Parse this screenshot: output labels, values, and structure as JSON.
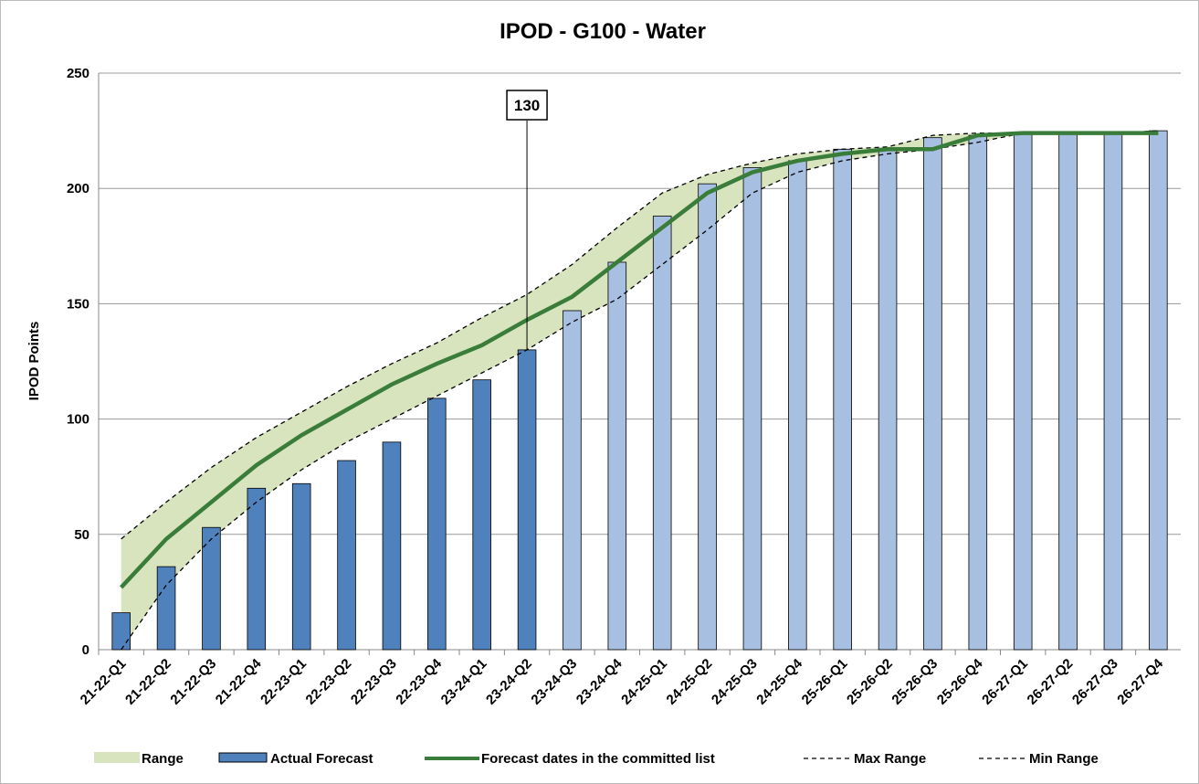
{
  "chart_data": {
    "type": "bar_line",
    "title": "IPOD - G100 - Water",
    "y_label": "IPOD Points",
    "categories": [
      "21-22-Q1",
      "21-22-Q2",
      "21-22-Q3",
      "21-22-Q4",
      "22-23-Q1",
      "22-23-Q2",
      "22-23-Q3",
      "22-23-Q4",
      "23-24-Q1",
      "23-24-Q2",
      "23-24-Q3",
      "23-24-Q4",
      "24-25-Q1",
      "24-25-Q2",
      "24-25-Q3",
      "24-25-Q4",
      "25-26-Q1",
      "25-26-Q2",
      "25-26-Q3",
      "25-26-Q4",
      "26-27-Q1",
      "26-27-Q2",
      "26-27-Q3",
      "26-27-Q4"
    ],
    "range": {
      "name": "Range",
      "color": "#d7e4bd"
    },
    "series": [
      {
        "name": "Actual Forecast",
        "kind": "bar",
        "color": "#4f81bd",
        "colors": [
          "#4f81bd",
          "#4f81bd",
          "#4f81bd",
          "#4f81bd",
          "#4f81bd",
          "#4f81bd",
          "#4f81bd",
          "#4f81bd",
          "#4f81bd",
          "#4f81bd",
          "#a7bfe0",
          "#a7bfe0",
          "#a7bfe0",
          "#a7bfe0",
          "#a7bfe0",
          "#a7bfe0",
          "#a7bfe0",
          "#a7bfe0",
          "#a7bfe0",
          "#a7bfe0",
          "#a7bfe0",
          "#a7bfe0",
          "#a7bfe0",
          "#a7bfe0"
        ],
        "values": [
          16,
          36,
          53,
          70,
          72,
          82,
          90,
          109,
          117,
          130,
          147,
          168,
          188,
          202,
          209,
          212,
          217,
          217,
          222,
          223,
          224,
          224,
          224,
          225
        ]
      },
      {
        "name": "Forecast dates in the committed list",
        "kind": "line",
        "color": "#3a7d3a",
        "values": [
          27,
          48,
          64,
          80,
          93,
          104,
          115,
          124,
          132,
          143,
          153,
          168,
          183,
          198,
          207,
          212,
          215,
          217,
          217,
          223,
          224,
          224,
          224,
          224
        ]
      },
      {
        "name": "Max Range",
        "kind": "dashed",
        "color": "#000000",
        "values": [
          48,
          64,
          79,
          92,
          103,
          114,
          124,
          133,
          144,
          154,
          167,
          183,
          198,
          206,
          211,
          215,
          217,
          218,
          223,
          224,
          224,
          224,
          224,
          225
        ]
      },
      {
        "name": "Min Range",
        "kind": "dashed",
        "color": "#000000",
        "values": [
          0,
          28,
          48,
          64,
          78,
          90,
          100,
          110,
          120,
          130,
          142,
          152,
          167,
          182,
          198,
          207,
          212,
          215,
          217,
          220,
          224,
          224,
          224,
          224
        ]
      }
    ],
    "annotation": {
      "text": "130",
      "category": "23-24-Q2"
    },
    "ylim": [
      0,
      250
    ],
    "yticks": [
      0,
      50,
      100,
      150,
      200,
      250
    ],
    "grid": true
  }
}
